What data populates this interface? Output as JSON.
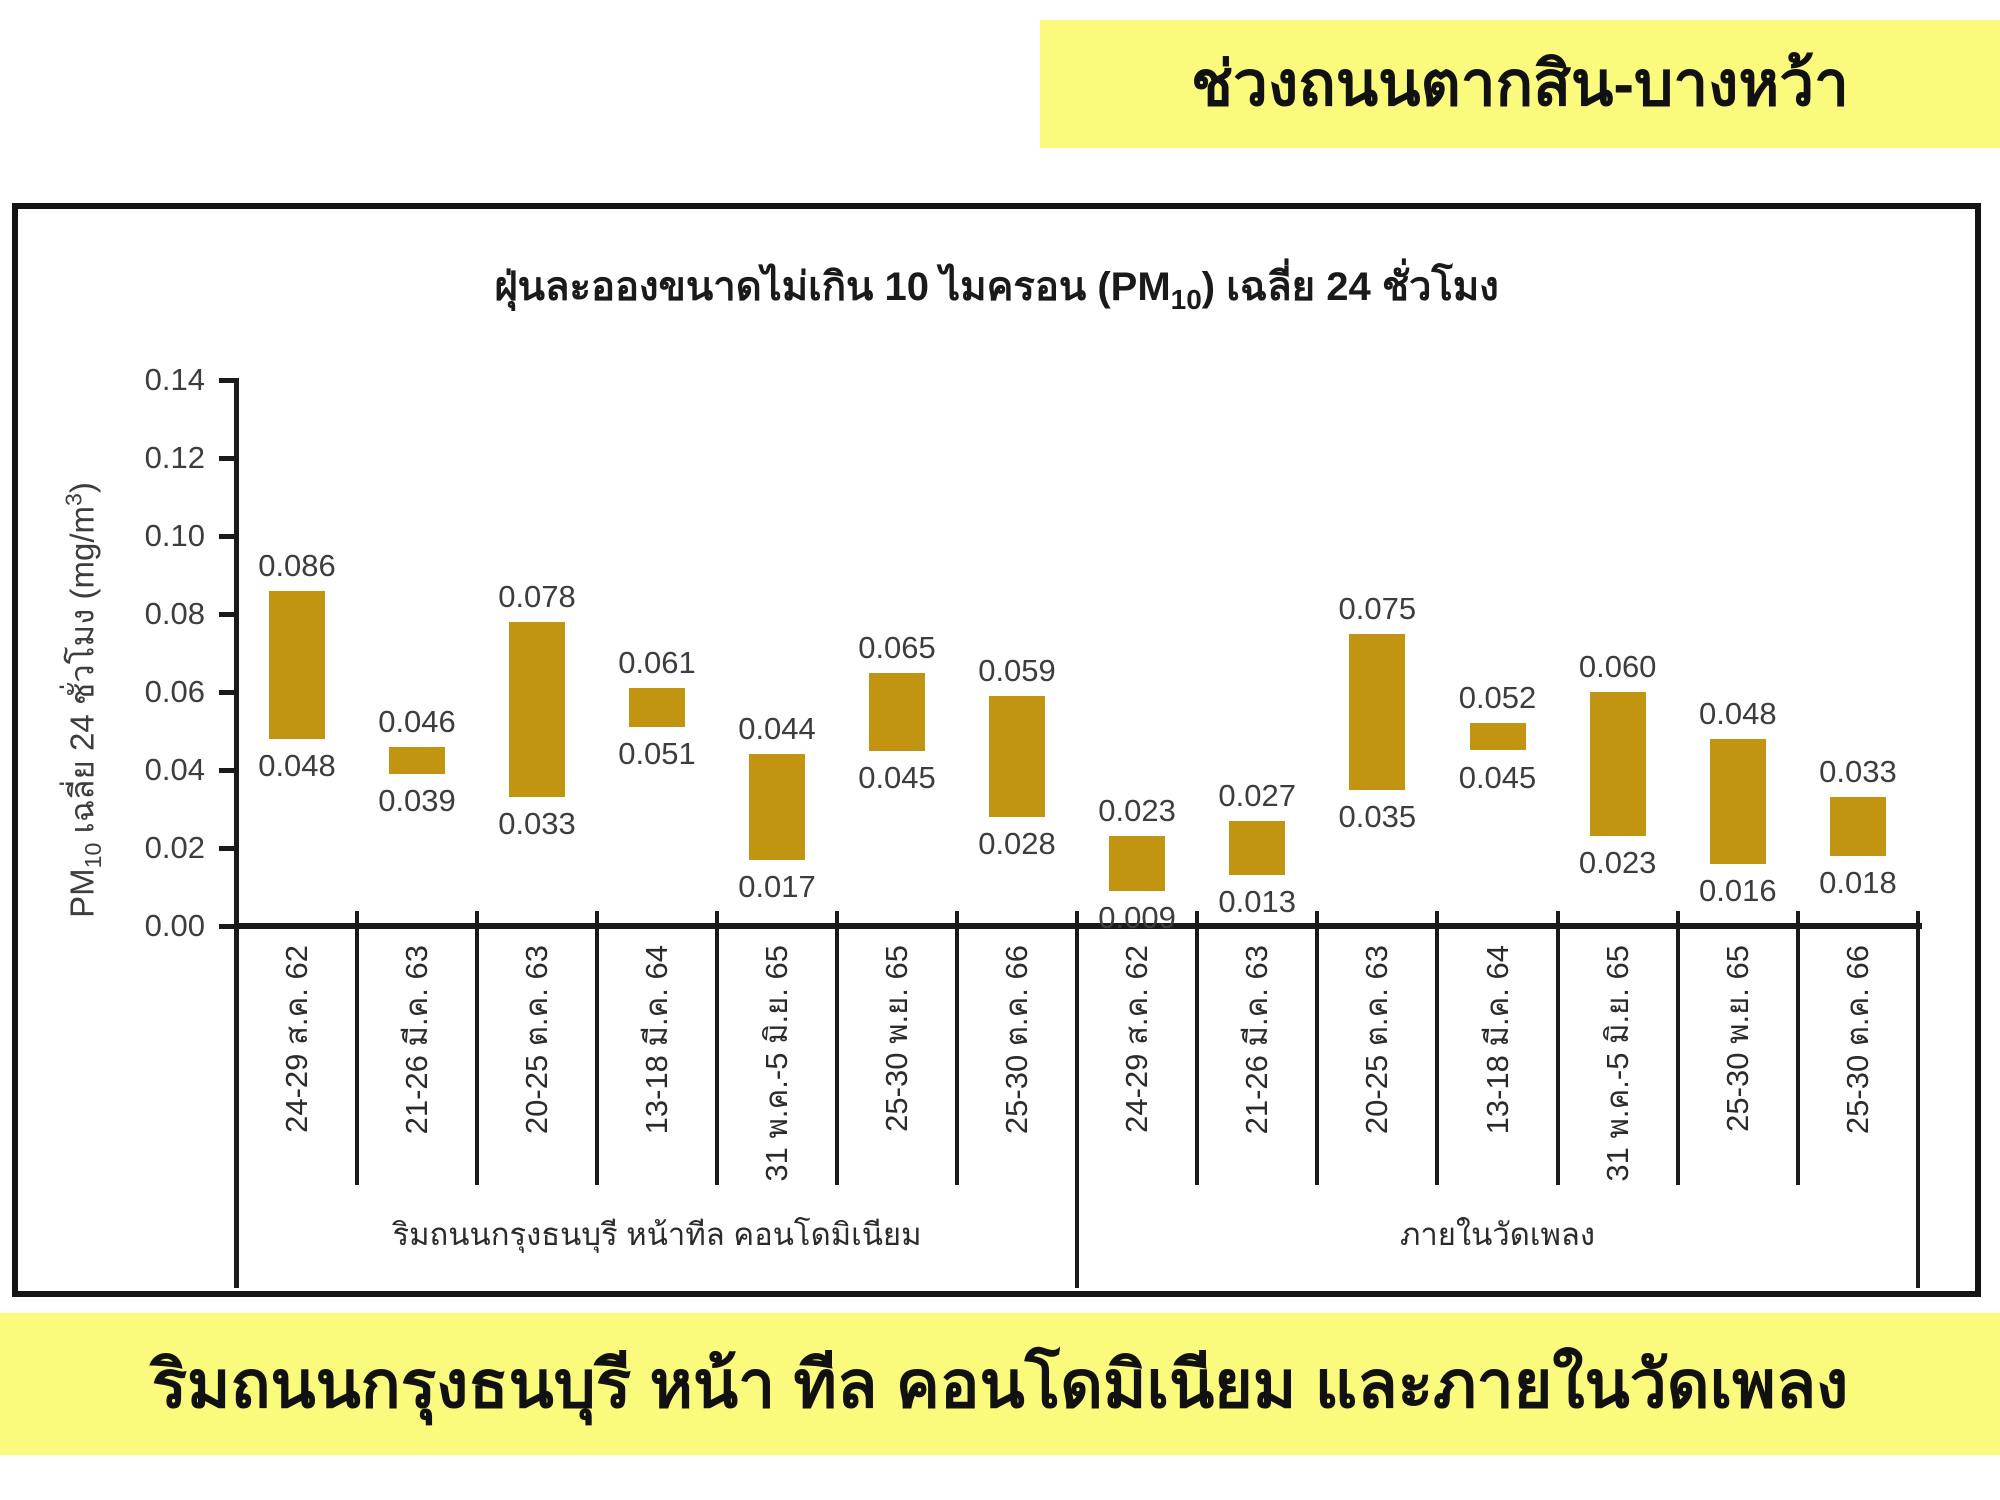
{
  "top_banner": {
    "text": "ช่วงถนนตากสิน-บางหว้า"
  },
  "bottom_banner": {
    "text": "ริมถนนกรุงธนบุรี หน้า ทีล คอนโดมิเนียม และภายในวัดเพลง"
  },
  "colors": {
    "banner_yellow": "#FAFA7D",
    "bar_gold": "#C19411",
    "axis_black": "#1A1A1A",
    "label_gray": "#3D3D3D"
  },
  "chart_data": {
    "type": "bar",
    "subtype": "floating-range-bar",
    "title": {
      "prefix": "ฝุ่นละอองขนาดไม่เกิน 10 ไมครอน (PM",
      "subscript": "10",
      "suffix": ") เฉลี่ย 24 ชั่วโมง"
    },
    "y_axis": {
      "label_prefix": "PM",
      "label_subscript": "10",
      "label_mid": "  เฉลี่ย 24 ชั่วโมง (mg/m",
      "label_superscript": "3",
      "label_suffix": ")",
      "min": 0,
      "max": 0.14,
      "tick_step": 0.02,
      "tick_labels": [
        "0.00",
        "0.02",
        "0.04",
        "0.06",
        "0.08",
        "0.10",
        "0.12",
        "0.14"
      ]
    },
    "grid": "off",
    "legend": "none",
    "bar_color": "#C19411",
    "value_label_decimals": 3,
    "groups": [
      {
        "label": "ริมถนนกรุงธนบุรี หน้าทีล คอนโดมิเนียม",
        "bars": [
          {
            "category": "24-29 ส.ค. 62",
            "low": 0.048,
            "high": 0.086
          },
          {
            "category": "21-26 มี.ค. 63",
            "low": 0.039,
            "high": 0.046
          },
          {
            "category": "20-25 ต.ค. 63",
            "low": 0.033,
            "high": 0.078
          },
          {
            "category": "13-18 มี.ค. 64",
            "low": 0.051,
            "high": 0.061
          },
          {
            "category": "31 พ.ค.-5 มิ.ย. 65",
            "low": 0.017,
            "high": 0.044
          },
          {
            "category": "25-30 พ.ย. 65",
            "low": 0.045,
            "high": 0.065
          },
          {
            "category": "25-30 ต.ค. 66",
            "low": 0.028,
            "high": 0.059
          }
        ]
      },
      {
        "label": "ภายในวัดเพลง",
        "bars": [
          {
            "category": "24-29 ส.ค. 62",
            "low": 0.009,
            "high": 0.023
          },
          {
            "category": "21-26 มี.ค. 63",
            "low": 0.013,
            "high": 0.027
          },
          {
            "category": "20-25 ต.ค. 63",
            "low": 0.035,
            "high": 0.075
          },
          {
            "category": "13-18 มี.ค. 64",
            "low": 0.045,
            "high": 0.052
          },
          {
            "category": "31 พ.ค.-5 มิ.ย. 65",
            "low": 0.023,
            "high": 0.06
          },
          {
            "category": "25-30 พ.ย. 65",
            "low": 0.016,
            "high": 0.048
          },
          {
            "category": "25-30 ต.ค. 66",
            "low": 0.018,
            "high": 0.033
          }
        ]
      }
    ]
  }
}
